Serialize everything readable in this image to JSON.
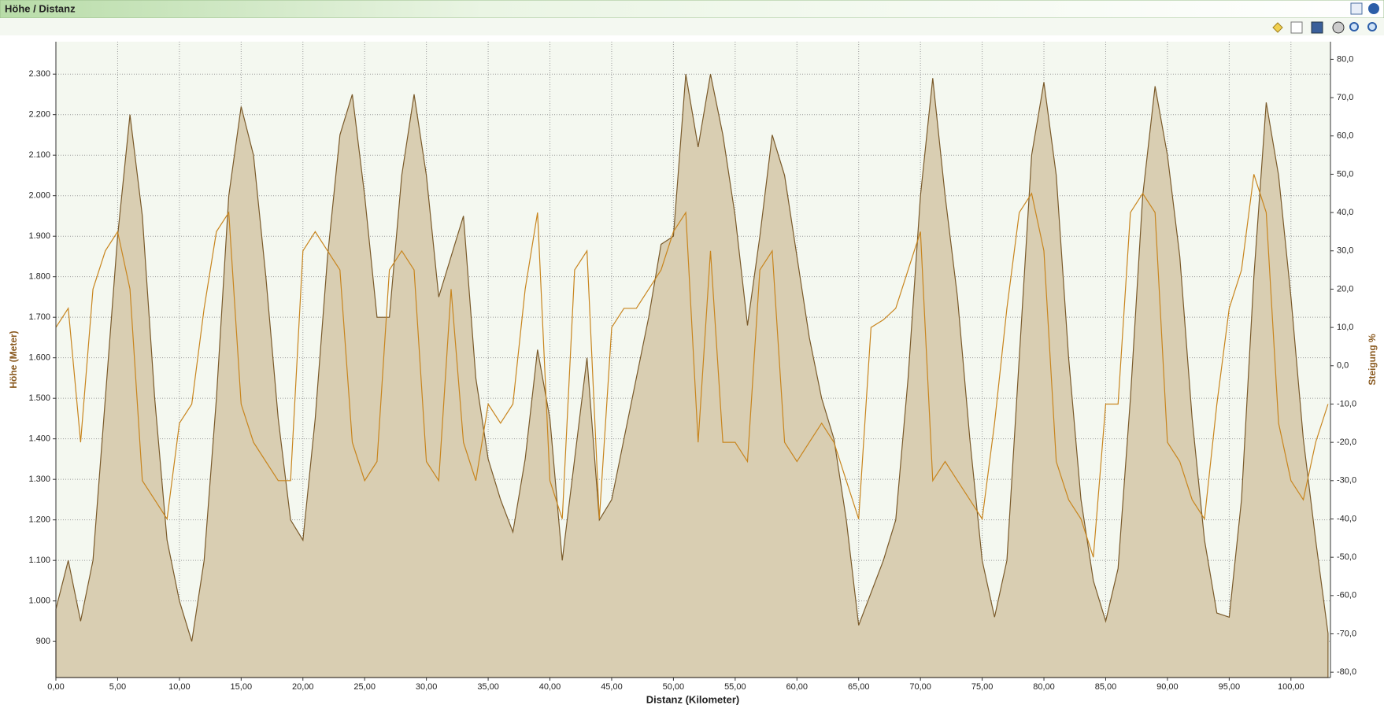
{
  "window_title": "Höhe / Distanz",
  "chart_data": {
    "type": "area_line",
    "xlabel": "Distanz (Kilometer)",
    "ylabel": "Höhe (Meter)",
    "y2label": "Steigung %",
    "x": [
      0,
      1,
      2,
      3,
      4,
      5,
      6,
      7,
      8,
      9,
      10,
      11,
      12,
      13,
      14,
      15,
      16,
      17,
      18,
      19,
      20,
      21,
      22,
      23,
      24,
      25,
      26,
      27,
      28,
      29,
      30,
      31,
      32,
      33,
      34,
      35,
      36,
      37,
      38,
      39,
      40,
      41,
      42,
      43,
      44,
      45,
      46,
      47,
      48,
      49,
      50,
      51,
      52,
      53,
      54,
      55,
      56,
      57,
      58,
      59,
      60,
      61,
      62,
      63,
      64,
      65,
      66,
      67,
      68,
      69,
      70,
      71,
      72,
      73,
      74,
      75,
      76,
      77,
      78,
      79,
      80,
      81,
      82,
      83,
      84,
      85,
      86,
      87,
      88,
      89,
      90,
      91,
      92,
      93,
      94,
      95,
      96,
      97,
      98,
      99,
      100,
      101,
      102,
      103
    ],
    "series": [
      {
        "name": "Höhe (Meter)",
        "color": "#7a5a2a",
        "fill": "#d9ceb2",
        "values": [
          980,
          1100,
          950,
          1100,
          1500,
          1900,
          2200,
          1950,
          1500,
          1150,
          1000,
          900,
          1100,
          1500,
          2000,
          2220,
          2100,
          1800,
          1450,
          1200,
          1150,
          1450,
          1850,
          2150,
          2250,
          2000,
          1700,
          1700,
          2050,
          2250,
          2050,
          1750,
          1850,
          1950,
          1550,
          1350,
          1250,
          1170,
          1350,
          1620,
          1450,
          1100,
          1350,
          1600,
          1200,
          1250,
          1400,
          1550,
          1700,
          1880,
          1900,
          2300,
          2120,
          2300,
          2150,
          1950,
          1680,
          1900,
          2150,
          2050,
          1850,
          1650,
          1500,
          1400,
          1200,
          940,
          1020,
          1100,
          1200,
          1550,
          2000,
          2290,
          2000,
          1750,
          1400,
          1100,
          960,
          1100,
          1600,
          2100,
          2280,
          2050,
          1600,
          1250,
          1050,
          950,
          1080,
          1500,
          2000,
          2270,
          2100,
          1850,
          1450,
          1150,
          970,
          960,
          1250,
          1800,
          2230,
          2050,
          1750,
          1400,
          1150,
          920
        ]
      },
      {
        "name": "Steigung %",
        "color": "#c8851e",
        "axis": "y2",
        "values": [
          10,
          15,
          -20,
          20,
          30,
          35,
          20,
          -30,
          -35,
          -40,
          -15,
          -10,
          15,
          35,
          40,
          -10,
          -20,
          -25,
          -30,
          -30,
          30,
          35,
          30,
          25,
          -20,
          -30,
          -25,
          25,
          30,
          25,
          -25,
          -30,
          20,
          -20,
          -30,
          -10,
          -15,
          -10,
          20,
          40,
          -30,
          -40,
          25,
          30,
          -40,
          10,
          15,
          15,
          20,
          25,
          35,
          40,
          -20,
          30,
          -20,
          -20,
          -25,
          25,
          30,
          -20,
          -25,
          -20,
          -15,
          -20,
          -30,
          -40,
          10,
          12,
          15,
          25,
          35,
          -30,
          -25,
          -30,
          -35,
          -40,
          -15,
          15,
          40,
          45,
          30,
          -25,
          -35,
          -40,
          -50,
          -10,
          -10,
          40,
          45,
          40,
          -20,
          -25,
          -35,
          -40,
          -10,
          15,
          25,
          50,
          40,
          -15,
          -30,
          -35,
          -20,
          -10
        ]
      }
    ],
    "xlim": [
      0,
      103.2
    ],
    "xticks": [
      {
        "value": 0,
        "label": "0,00"
      },
      {
        "value": 5,
        "label": "5,00"
      },
      {
        "value": 10,
        "label": "10,00"
      },
      {
        "value": 15,
        "label": "15,00"
      },
      {
        "value": 20,
        "label": "20,00"
      },
      {
        "value": 25,
        "label": "25,00"
      },
      {
        "value": 30,
        "label": "30,00"
      },
      {
        "value": 35,
        "label": "35,00"
      },
      {
        "value": 40,
        "label": "40,00"
      },
      {
        "value": 45,
        "label": "45,00"
      },
      {
        "value": 50,
        "label": "50,00"
      },
      {
        "value": 55,
        "label": "55,00"
      },
      {
        "value": 60,
        "label": "60,00"
      },
      {
        "value": 65,
        "label": "65,00"
      },
      {
        "value": 70,
        "label": "70,00"
      },
      {
        "value": 75,
        "label": "75,00"
      },
      {
        "value": 80,
        "label": "80,00"
      },
      {
        "value": 85,
        "label": "85,00"
      },
      {
        "value": 90,
        "label": "90,00"
      },
      {
        "value": 95,
        "label": "95,00"
      },
      {
        "value": 100,
        "label": "100,00"
      }
    ],
    "ylim": [
      811,
      2380
    ],
    "yticks": [
      900,
      {
        "value": 1000,
        "label": "1.000"
      },
      {
        "value": 1100,
        "label": "1.100"
      },
      {
        "value": 1200,
        "label": "1.200"
      },
      {
        "value": 1300,
        "label": "1.300"
      },
      {
        "value": 1400,
        "label": "1.400"
      },
      {
        "value": 1500,
        "label": "1.500"
      },
      {
        "value": 1600,
        "label": "1.600"
      },
      {
        "value": 1700,
        "label": "1.700"
      },
      {
        "value": 1800,
        "label": "1.800"
      },
      {
        "value": 1900,
        "label": "1.900"
      },
      {
        "value": 2000,
        "label": "2.000"
      },
      {
        "value": 2100,
        "label": "2.100"
      },
      {
        "value": 2200,
        "label": "2.200"
      },
      {
        "value": 2300,
        "label": "2.300"
      }
    ],
    "y2lim": [
      -81.4,
      84.6
    ],
    "y2ticks": [
      {
        "value": -80,
        "label": "-80,0"
      },
      {
        "value": -70,
        "label": "-70,0"
      },
      {
        "value": -60,
        "label": "-60,0"
      },
      {
        "value": -50,
        "label": "-50,0"
      },
      {
        "value": -40,
        "label": "-40,0"
      },
      {
        "value": -30,
        "label": "-30,0"
      },
      {
        "value": -20,
        "label": "-20,0"
      },
      {
        "value": -10,
        "label": "-10,0"
      },
      {
        "value": 0,
        "label": "0,0"
      },
      {
        "value": 10,
        "label": "10,0"
      },
      {
        "value": 20,
        "label": "20,0"
      },
      {
        "value": 30,
        "label": "30,0"
      },
      {
        "value": 40,
        "label": "40,0"
      },
      {
        "value": 50,
        "label": "50,0"
      },
      {
        "value": 60,
        "label": "60,0"
      },
      {
        "value": 70,
        "label": "70,0"
      },
      {
        "value": 80,
        "label": "80,0"
      }
    ],
    "grid": true
  }
}
